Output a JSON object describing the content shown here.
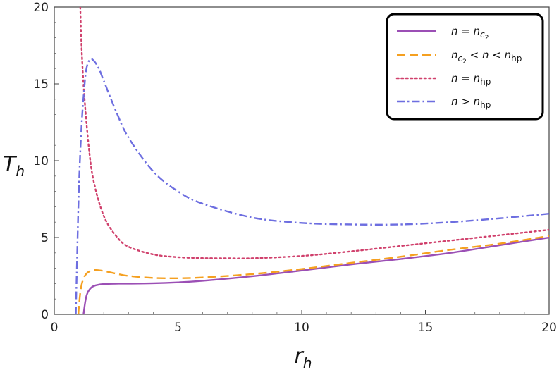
{
  "chart_data": {
    "type": "line",
    "title": "",
    "xlabel": "r_h",
    "ylabel": "T_h",
    "xlim": [
      0,
      20
    ],
    "ylim": [
      0,
      20
    ],
    "x_ticks": [
      0,
      5,
      10,
      15,
      20
    ],
    "y_ticks": [
      0,
      5,
      10,
      15,
      20
    ],
    "grid": false,
    "legend_position": "top-right",
    "series": [
      {
        "name": "n = n_c2",
        "legend_parts": [
          "n",
          "=",
          "n",
          "c",
          "2"
        ],
        "color": "#9b4fb5",
        "dash": "solid",
        "x": [
          1.18,
          1.3,
          1.5,
          1.8,
          2.2,
          2.6,
          3,
          4,
          5,
          6,
          8,
          10,
          12,
          14,
          16,
          18,
          20
        ],
        "y": [
          0,
          1.2,
          1.75,
          1.93,
          1.98,
          2.0,
          2.0,
          2.02,
          2.08,
          2.18,
          2.48,
          2.85,
          3.25,
          3.6,
          4.0,
          4.5,
          5.0
        ]
      },
      {
        "name": "n_c2 < n < n_hp",
        "legend_parts": [
          "n",
          "c",
          "2",
          "<",
          "n",
          "<",
          "n",
          "hp"
        ],
        "color": "#f5a020",
        "dash": "dashed",
        "x": [
          0.97,
          1.05,
          1.15,
          1.3,
          1.5,
          1.7,
          2.0,
          2.5,
          3,
          4,
          5,
          6,
          8,
          10,
          12,
          14,
          16,
          18,
          20
        ],
        "y": [
          0,
          1.4,
          2.2,
          2.65,
          2.85,
          2.88,
          2.82,
          2.65,
          2.5,
          2.37,
          2.35,
          2.4,
          2.62,
          2.95,
          3.35,
          3.75,
          4.2,
          4.6,
          5.1
        ]
      },
      {
        "name": "n = n_hp",
        "legend_parts": [
          "n",
          "=",
          "n",
          "hp"
        ],
        "color": "#d0406c",
        "dash": "dotted",
        "x": [
          1.05,
          1.1,
          1.2,
          1.4,
          1.6,
          2.0,
          2.5,
          3,
          4,
          5,
          6,
          7,
          8,
          10,
          12,
          14,
          16,
          18,
          20
        ],
        "y": [
          20,
          17.5,
          14.5,
          10.8,
          8.6,
          6.4,
          5.1,
          4.4,
          3.9,
          3.72,
          3.66,
          3.65,
          3.65,
          3.8,
          4.1,
          4.45,
          4.8,
          5.15,
          5.5
        ]
      },
      {
        "name": "n > n_hp",
        "legend_parts": [
          "n",
          ">",
          "n",
          "hp"
        ],
        "color": "#6d6ee0",
        "dash": "dashdot",
        "x": [
          0.87,
          0.92,
          1.0,
          1.1,
          1.2,
          1.3,
          1.45,
          1.6,
          1.8,
          2.0,
          2.5,
          3,
          4,
          5,
          6,
          8,
          10,
          12,
          14,
          16,
          18,
          20
        ],
        "y": [
          0,
          3.5,
          8.5,
          12.2,
          14.5,
          16.0,
          16.6,
          16.5,
          16.0,
          15.2,
          13.2,
          11.5,
          9.3,
          8.0,
          7.2,
          6.3,
          5.95,
          5.85,
          5.85,
          6.0,
          6.25,
          6.55
        ]
      }
    ]
  }
}
